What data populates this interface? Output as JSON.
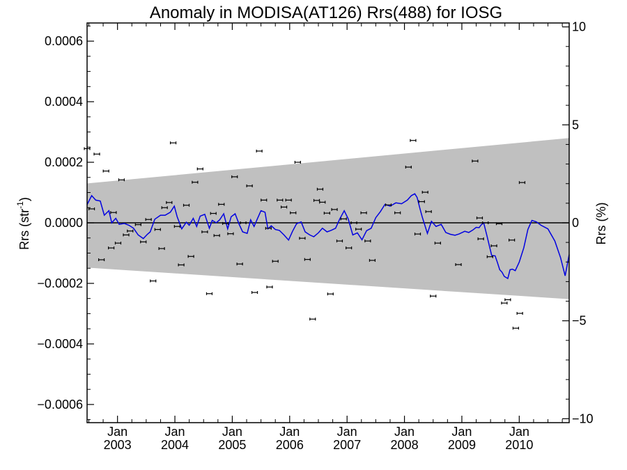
{
  "chart_data": {
    "type": "line",
    "title": "Anomaly in MODISA(AT126) Rrs(488) for IOSG",
    "ylabel": "Rrs (str",
    "ylabel_sup": "-1",
    "ylabel_close": ")",
    "y2label": "Rrs (%)",
    "x_range": [
      2002.47,
      2010.87
    ],
    "ylim": [
      -0.00066,
      0.00066
    ],
    "y2lim": [
      -10.2,
      10.2
    ],
    "y_ticks": [
      {
        "v": 0.0006,
        "label": "0.0006"
      },
      {
        "v": 0.0004,
        "label": "0.0004"
      },
      {
        "v": 0.0002,
        "label": "0.0002"
      },
      {
        "v": 0.0,
        "label": "0.0000"
      },
      {
        "v": -0.0002,
        "label": "−0.0002"
      },
      {
        "v": -0.0004,
        "label": "−0.0004"
      },
      {
        "v": -0.0006,
        "label": "−0.0006"
      }
    ],
    "y2_ticks": [
      {
        "v": 10,
        "label": "10"
      },
      {
        "v": 5,
        "label": "5"
      },
      {
        "v": 0,
        "label": "0"
      },
      {
        "v": -5,
        "label": "−5"
      },
      {
        "v": -10,
        "label": "−10"
      }
    ],
    "x_ticks": [
      {
        "v": 2003.0,
        "month": "Jan",
        "year": "2003"
      },
      {
        "v": 2004.0,
        "month": "Jan",
        "year": "2004"
      },
      {
        "v": 2005.0,
        "month": "Jan",
        "year": "2005"
      },
      {
        "v": 2006.0,
        "month": "Jan",
        "year": "2006"
      },
      {
        "v": 2007.0,
        "month": "Jan",
        "year": "2007"
      },
      {
        "v": 2008.0,
        "month": "Jan",
        "year": "2008"
      },
      {
        "v": 2009.0,
        "month": "Jan",
        "year": "2009"
      },
      {
        "v": 2010.0,
        "month": "Jan",
        "year": "2010"
      }
    ],
    "band": {
      "color": "#c0c0c0",
      "upper": [
        [
          2002.47,
          0.00013
        ],
        [
          2010.87,
          0.00028
        ]
      ],
      "lower": [
        [
          2002.47,
          -0.000148
        ],
        [
          2010.87,
          -0.000252
        ]
      ]
    },
    "series": [
      {
        "color": "#000000",
        "style": "points-with-errorbars",
        "points": [
          [
            2002.47,
            0.000245
          ],
          [
            2002.55,
            4.6e-05
          ],
          [
            2002.64,
            0.000227
          ],
          [
            2002.72,
            -0.000122
          ],
          [
            2002.8,
            0.000171
          ],
          [
            2002.89,
            -8.3e-05
          ],
          [
            2002.93,
            3.4e-05
          ],
          [
            2003.01,
            -6.7e-05
          ],
          [
            2003.07,
            0.000142
          ],
          [
            2003.15,
            -4e-05
          ],
          [
            2003.22,
            -2.7e-05
          ],
          [
            2003.36,
            -6e-06
          ],
          [
            2003.45,
            -6.3e-05
          ],
          [
            2003.54,
            1.1e-05
          ],
          [
            2003.62,
            -0.000192
          ],
          [
            2003.7,
            -2.2e-05
          ],
          [
            2003.77,
            -8.5e-05
          ],
          [
            2003.82,
            5e-05
          ],
          [
            2003.9,
            6.7e-05
          ],
          [
            2003.97,
            0.000264
          ],
          [
            2004.04,
            -1.2e-05
          ],
          [
            2004.11,
            -0.000139
          ],
          [
            2004.2,
            5.8e-05
          ],
          [
            2004.28,
            -0.000111
          ],
          [
            2004.35,
            0.000134
          ],
          [
            2004.44,
            0.000178
          ],
          [
            2004.52,
            -3e-05
          ],
          [
            2004.6,
            -0.000234
          ],
          [
            2004.67,
            3.1e-05
          ],
          [
            2004.73,
            -4.2e-05
          ],
          [
            2004.81,
            6.1e-05
          ],
          [
            2004.88,
            -2e-06
          ],
          [
            2004.97,
            -3.6e-05
          ],
          [
            2005.04,
            0.000152
          ],
          [
            2005.13,
            -0.000136
          ],
          [
            2005.19,
            0.0
          ],
          [
            2005.3,
            0.000122
          ],
          [
            2005.39,
            -0.00023
          ],
          [
            2005.47,
            0.000237
          ],
          [
            2005.55,
            7.5e-05
          ],
          [
            2005.63,
            -1.8e-05
          ],
          [
            2005.65,
            -0.000212
          ],
          [
            2005.75,
            -0.000127
          ],
          [
            2005.83,
            7.5e-05
          ],
          [
            2005.9,
            5.2e-05
          ],
          [
            2005.98,
            7.5e-05
          ],
          [
            2006.06,
            3.3e-05
          ],
          [
            2006.14,
            0.0002
          ],
          [
            2006.22,
            -5.1e-05
          ],
          [
            2006.31,
            -0.000121
          ],
          [
            2006.4,
            -0.000318
          ],
          [
            2006.47,
            7.4e-05
          ],
          [
            2006.53,
            0.000111
          ],
          [
            2006.57,
            6.8e-05
          ],
          [
            2006.65,
            3.2e-05
          ],
          [
            2006.71,
            -0.000235
          ],
          [
            2006.78,
            4.4e-05
          ],
          [
            2006.87,
            -6e-05
          ],
          [
            2006.94,
            1.3e-05
          ],
          [
            2007.03,
            -8.3e-05
          ],
          [
            2007.12,
            0.0
          ],
          [
            2007.2,
            -2.1e-05
          ],
          [
            2007.29,
            3.3e-05
          ],
          [
            2007.36,
            -6e-05
          ],
          [
            2007.44,
            -0.000124
          ],
          [
            2007.72,
            5.9e-05
          ],
          [
            2007.88,
            3.3e-05
          ],
          [
            2008.07,
            0.000184
          ],
          [
            2008.15,
            0.000272
          ],
          [
            2008.23,
            -3.7e-05
          ],
          [
            2008.3,
            7e-05
          ],
          [
            2008.36,
            0.000101
          ],
          [
            2008.42,
            3.7e-05
          ],
          [
            2008.5,
            -0.000242
          ],
          [
            2008.58,
            -6.7e-05
          ],
          [
            2008.94,
            -0.000138
          ],
          [
            2009.23,
            0.000204
          ],
          [
            2009.31,
            1.6e-05
          ],
          [
            2009.33,
            -5.3e-05
          ],
          [
            2009.41,
            0.0
          ],
          [
            2009.49,
            -0.000112
          ],
          [
            2009.56,
            -7.6e-05
          ],
          [
            2009.65,
            -3e-06
          ],
          [
            2009.74,
            -0.000265
          ],
          [
            2009.8,
            -0.000254
          ],
          [
            2009.87,
            -5.7e-05
          ],
          [
            2009.94,
            -0.000348
          ],
          [
            2010.01,
            -0.000299
          ],
          [
            2010.05,
            0.000133
          ]
        ]
      },
      {
        "color": "#0000e0",
        "style": "line",
        "points": [
          [
            2002.47,
            6e-05
          ],
          [
            2002.55,
            9e-05
          ],
          [
            2002.62,
            7.5e-05
          ],
          [
            2002.7,
            7.2e-05
          ],
          [
            2002.77,
            2.5e-05
          ],
          [
            2002.85,
            4e-05
          ],
          [
            2002.9,
            0.0
          ],
          [
            2002.97,
            1.5e-05
          ],
          [
            2003.03,
            -5e-06
          ],
          [
            2003.12,
            -2e-06
          ],
          [
            2003.2,
            -8e-06
          ],
          [
            2003.28,
            -1.8e-05
          ],
          [
            2003.36,
            -4e-05
          ],
          [
            2003.45,
            -5.2e-05
          ],
          [
            2003.52,
            -3.8e-05
          ],
          [
            2003.57,
            -3e-05
          ],
          [
            2003.65,
            1.2e-05
          ],
          [
            2003.75,
            2.5e-05
          ],
          [
            2003.83,
            2.5e-05
          ],
          [
            2003.92,
            3.5e-05
          ],
          [
            2003.99,
            5.5e-05
          ],
          [
            2004.04,
            2e-05
          ],
          [
            2004.12,
            -2e-05
          ],
          [
            2004.2,
            2e-06
          ],
          [
            2004.25,
            -8e-06
          ],
          [
            2004.32,
            1.5e-05
          ],
          [
            2004.38,
            -1.2e-05
          ],
          [
            2004.44,
            2.2e-05
          ],
          [
            2004.52,
            2.8e-05
          ],
          [
            2004.6,
            -1.8e-05
          ],
          [
            2004.65,
            8e-06
          ],
          [
            2004.72,
            0.0
          ],
          [
            2004.78,
            1e-05
          ],
          [
            2004.85,
            3e-05
          ],
          [
            2004.92,
            -2e-05
          ],
          [
            2004.98,
            2e-05
          ],
          [
            2005.05,
            3e-05
          ],
          [
            2005.12,
            -5e-06
          ],
          [
            2005.18,
            -3e-05
          ],
          [
            2005.26,
            -3.5e-05
          ],
          [
            2005.32,
            1e-05
          ],
          [
            2005.38,
            -1.2e-05
          ],
          [
            2005.43,
            1e-05
          ],
          [
            2005.5,
            4e-05
          ],
          [
            2005.57,
            3.5e-05
          ],
          [
            2005.62,
            -2e-05
          ],
          [
            2005.68,
            -1e-05
          ],
          [
            2005.75,
            -2.2e-05
          ],
          [
            2005.82,
            -2.5e-05
          ],
          [
            2005.9,
            -4e-05
          ],
          [
            2005.98,
            -5.7e-05
          ],
          [
            2006.05,
            -2.8e-05
          ],
          [
            2006.12,
            -3e-06
          ],
          [
            2006.2,
            3e-06
          ],
          [
            2006.27,
            -3e-05
          ],
          [
            2006.35,
            -4e-05
          ],
          [
            2006.42,
            -4.6e-05
          ],
          [
            2006.5,
            -3.3e-05
          ],
          [
            2006.57,
            -1.8e-05
          ],
          [
            2006.65,
            -3e-05
          ],
          [
            2006.72,
            -2.5e-05
          ],
          [
            2006.8,
            -1.8e-05
          ],
          [
            2006.87,
            1.2e-05
          ],
          [
            2006.95,
            4e-05
          ],
          [
            2007.02,
            1.3e-05
          ],
          [
            2007.1,
            -4e-05
          ],
          [
            2007.18,
            -3.3e-05
          ],
          [
            2007.26,
            -5.6e-05
          ],
          [
            2007.34,
            -2.6e-05
          ],
          [
            2007.42,
            -1.8e-05
          ],
          [
            2007.5,
            1.7e-05
          ],
          [
            2007.58,
            3.7e-05
          ],
          [
            2007.66,
            6.1e-05
          ],
          [
            2007.75,
            5.5e-05
          ],
          [
            2007.85,
            6.6e-05
          ],
          [
            2007.95,
            6.3e-05
          ],
          [
            2008.05,
            7.5e-05
          ],
          [
            2008.12,
            9e-05
          ],
          [
            2008.18,
            9.6e-05
          ],
          [
            2008.22,
            8.4e-05
          ],
          [
            2008.27,
            4.7e-05
          ],
          [
            2008.31,
            1.9e-05
          ],
          [
            2008.35,
            -5e-06
          ],
          [
            2008.4,
            -3.5e-05
          ],
          [
            2008.47,
            5e-06
          ],
          [
            2008.55,
            -1.2e-05
          ],
          [
            2008.64,
            -5e-06
          ],
          [
            2008.72,
            -3.2e-05
          ],
          [
            2008.8,
            -3.8e-05
          ],
          [
            2008.88,
            -4.1e-05
          ],
          [
            2008.95,
            -3.7e-05
          ],
          [
            2009.05,
            -2.8e-05
          ],
          [
            2009.12,
            -3.2e-05
          ],
          [
            2009.19,
            -2.4e-05
          ],
          [
            2009.25,
            -1.5e-05
          ],
          [
            2009.3,
            -1.6e-05
          ],
          [
            2009.34,
            -6e-06
          ],
          [
            2009.38,
            0.0
          ],
          [
            2009.44,
            -4.5e-05
          ],
          [
            2009.52,
            -0.000108
          ],
          [
            2009.58,
            -0.000109
          ],
          [
            2009.62,
            -0.000131
          ],
          [
            2009.66,
            -0.000155
          ],
          [
            2009.7,
            -0.000163
          ],
          [
            2009.74,
            -0.000177
          ],
          [
            2009.8,
            -0.000184
          ],
          [
            2009.84,
            -0.000155
          ],
          [
            2009.88,
            -0.000153
          ],
          [
            2009.93,
            -0.000158
          ],
          [
            2010.0,
            -0.00013
          ],
          [
            2010.08,
            -8.2e-05
          ],
          [
            2010.15,
            -2.2e-05
          ],
          [
            2010.22,
            8e-06
          ],
          [
            2010.3,
            3e-06
          ],
          [
            2010.38,
            -8e-06
          ],
          [
            2010.5,
            -2e-05
          ],
          [
            2010.62,
            -6e-05
          ],
          [
            2010.72,
            -0.000115
          ],
          [
            2010.8,
            -0.000175
          ],
          [
            2010.87,
            -0.000105
          ]
        ]
      }
    ],
    "zero_line": 0
  }
}
